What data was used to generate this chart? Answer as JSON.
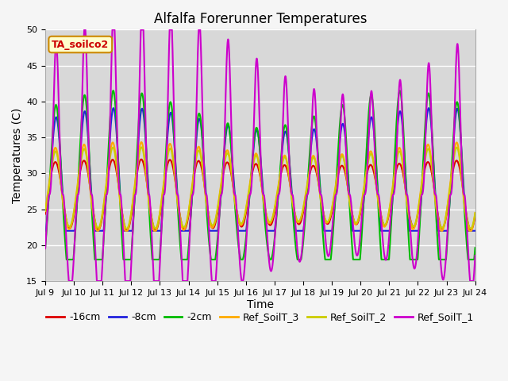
{
  "title": "Alfalfa Forerunner Temperatures",
  "xlabel": "Time",
  "ylabel": "Temperatures (C)",
  "ylim": [
    15,
    50
  ],
  "yticks": [
    15,
    20,
    25,
    30,
    35,
    40,
    45,
    50
  ],
  "legend_label": "TA_soilco2",
  "series_labels": [
    "-16cm",
    "-8cm",
    "-2cm",
    "Ref_SoilT_3",
    "Ref_SoilT_2",
    "Ref_SoilT_1"
  ],
  "series_colors": [
    "#dd0000",
    "#2222dd",
    "#00bb00",
    "#ffaa00",
    "#cccc00",
    "#cc00cc"
  ],
  "line_widths": [
    1.5,
    1.5,
    1.5,
    1.5,
    1.5,
    1.5
  ],
  "plot_bg_color": "#d8d8d8",
  "fig_bg_color": "#f5f5f5",
  "title_fontsize": 12,
  "axis_label_fontsize": 10,
  "tick_label_fontsize": 8,
  "legend_fontsize": 9,
  "figsize": [
    6.4,
    4.8
  ],
  "dpi": 100,
  "num_days": 15,
  "start_day": 9,
  "xtick_days": [
    9,
    10,
    11,
    12,
    13,
    14,
    15,
    16,
    17,
    18,
    19,
    20,
    21,
    22,
    23,
    24
  ]
}
